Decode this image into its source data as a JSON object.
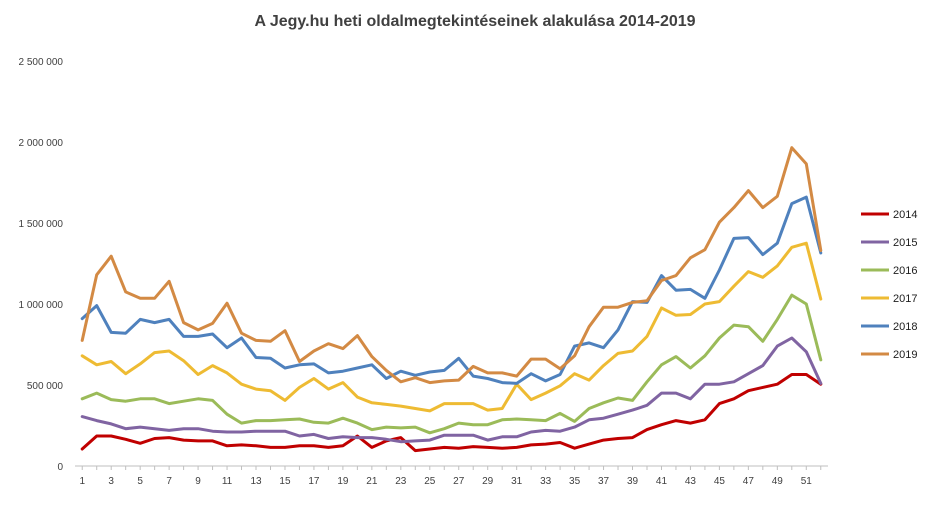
{
  "chart_data": {
    "type": "line",
    "title": "A Jegy.hu heti oldalmegtekintéseinek alakulása 2014-2019",
    "xlabel": "",
    "ylabel": "",
    "x": [
      1,
      2,
      3,
      4,
      5,
      6,
      7,
      8,
      9,
      10,
      11,
      12,
      13,
      14,
      15,
      16,
      17,
      18,
      19,
      20,
      21,
      22,
      23,
      24,
      25,
      26,
      27,
      28,
      29,
      30,
      31,
      32,
      33,
      34,
      35,
      36,
      37,
      38,
      39,
      40,
      41,
      42,
      43,
      44,
      45,
      46,
      47,
      48,
      49,
      50,
      51,
      52
    ],
    "xtick_labels": [
      "1",
      "3",
      "5",
      "7",
      "9",
      "11",
      "13",
      "15",
      "17",
      "19",
      "21",
      "23",
      "25",
      "27",
      "29",
      "31",
      "33",
      "35",
      "37",
      "39",
      "41",
      "43",
      "45",
      "47",
      "49",
      "51"
    ],
    "xtick_values": [
      1,
      3,
      5,
      7,
      9,
      11,
      13,
      15,
      17,
      19,
      21,
      23,
      25,
      27,
      29,
      31,
      33,
      35,
      37,
      39,
      41,
      43,
      45,
      47,
      49,
      51
    ],
    "ylim": [
      0,
      2500000
    ],
    "ytick_values": [
      0,
      500000,
      1000000,
      1500000,
      2000000,
      2500000
    ],
    "ytick_labels": [
      "0",
      "500 000",
      "1 000 000",
      "1 500 000",
      "2 000 000",
      "2 500 000"
    ],
    "grid": false,
    "legend_position": "right",
    "series": [
      {
        "name": "2014",
        "color": "#c00000",
        "values": [
          105000,
          185000,
          185000,
          165000,
          140000,
          170000,
          175000,
          160000,
          155000,
          155000,
          125000,
          130000,
          125000,
          115000,
          115000,
          125000,
          125000,
          115000,
          125000,
          185000,
          115000,
          155000,
          175000,
          95000,
          105000,
          115000,
          110000,
          120000,
          115000,
          110000,
          115000,
          130000,
          135000,
          145000,
          110000,
          135000,
          160000,
          170000,
          175000,
          225000,
          255000,
          280000,
          265000,
          285000,
          385000,
          415000,
          465000,
          485000,
          505000,
          565000,
          565000,
          505000
        ]
      },
      {
        "name": "2015",
        "color": "#8064a2",
        "values": [
          305000,
          280000,
          260000,
          230000,
          240000,
          230000,
          220000,
          230000,
          230000,
          215000,
          210000,
          210000,
          215000,
          215000,
          215000,
          185000,
          195000,
          170000,
          180000,
          175000,
          175000,
          165000,
          150000,
          155000,
          160000,
          190000,
          190000,
          190000,
          160000,
          180000,
          180000,
          210000,
          220000,
          215000,
          240000,
          285000,
          295000,
          320000,
          345000,
          375000,
          450000,
          450000,
          415000,
          505000,
          505000,
          520000,
          570000,
          620000,
          740000,
          790000,
          705000,
          510000
        ]
      },
      {
        "name": "2016",
        "color": "#9bbb59",
        "values": [
          415000,
          450000,
          410000,
          400000,
          415000,
          415000,
          385000,
          400000,
          415000,
          405000,
          320000,
          265000,
          280000,
          280000,
          285000,
          290000,
          270000,
          265000,
          295000,
          265000,
          225000,
          240000,
          235000,
          240000,
          205000,
          230000,
          265000,
          255000,
          255000,
          285000,
          290000,
          285000,
          280000,
          325000,
          275000,
          355000,
          390000,
          420000,
          405000,
          520000,
          625000,
          675000,
          605000,
          680000,
          790000,
          870000,
          860000,
          770000,
          905000,
          1055000,
          1000000,
          655000
        ]
      },
      {
        "name": "2017",
        "color": "#eebb33",
        "values": [
          680000,
          625000,
          645000,
          570000,
          630000,
          700000,
          710000,
          650000,
          565000,
          620000,
          575000,
          505000,
          475000,
          465000,
          405000,
          485000,
          540000,
          475000,
          515000,
          425000,
          390000,
          380000,
          370000,
          355000,
          340000,
          385000,
          385000,
          385000,
          345000,
          355000,
          505000,
          410000,
          450000,
          495000,
          570000,
          530000,
          620000,
          695000,
          710000,
          800000,
          975000,
          930000,
          935000,
          1000000,
          1015000,
          1110000,
          1200000,
          1165000,
          1235000,
          1350000,
          1375000,
          1030000
        ]
      },
      {
        "name": "2018",
        "color": "#4f81bd",
        "values": [
          910000,
          990000,
          825000,
          820000,
          905000,
          885000,
          905000,
          800000,
          800000,
          815000,
          730000,
          790000,
          670000,
          665000,
          605000,
          625000,
          630000,
          575000,
          585000,
          605000,
          625000,
          540000,
          585000,
          560000,
          580000,
          590000,
          665000,
          555000,
          540000,
          515000,
          510000,
          570000,
          525000,
          565000,
          740000,
          760000,
          730000,
          840000,
          1015000,
          1010000,
          1175000,
          1085000,
          1090000,
          1035000,
          1210000,
          1405000,
          1410000,
          1305000,
          1375000,
          1620000,
          1660000,
          1315000
        ]
      },
      {
        "name": "2019",
        "color": "#d38a44",
        "values": [
          775000,
          1180000,
          1295000,
          1075000,
          1035000,
          1035000,
          1140000,
          885000,
          840000,
          880000,
          1005000,
          820000,
          775000,
          770000,
          835000,
          645000,
          710000,
          755000,
          725000,
          805000,
          675000,
          590000,
          520000,
          545000,
          515000,
          525000,
          530000,
          615000,
          575000,
          575000,
          555000,
          660000,
          660000,
          600000,
          680000,
          860000,
          980000,
          980000,
          1010000,
          1020000,
          1145000,
          1175000,
          1285000,
          1335000,
          1505000,
          1595000,
          1700000,
          1595000,
          1665000,
          1965000,
          1865000,
          1330000
        ]
      }
    ]
  }
}
